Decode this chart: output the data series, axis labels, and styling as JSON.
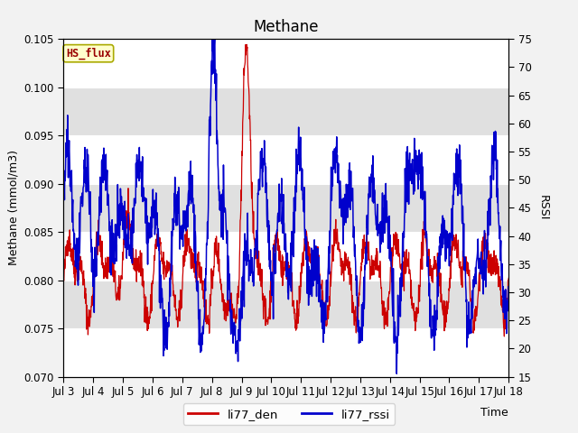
{
  "title": "Methane",
  "ylabel_left": "Methane (mmol/m3)",
  "ylabel_right": "RSSI",
  "xlabel": "Time",
  "ylim_left": [
    0.07,
    0.105
  ],
  "ylim_right": [
    15,
    75
  ],
  "yticks_left": [
    0.07,
    0.075,
    0.08,
    0.085,
    0.09,
    0.095,
    0.1,
    0.105
  ],
  "yticks_right": [
    15,
    20,
    25,
    30,
    35,
    40,
    45,
    50,
    55,
    60,
    65,
    70,
    75
  ],
  "xtick_labels": [
    "Jul 3",
    "Jul 4",
    "Jul 5",
    "Jul 6",
    "Jul 7",
    "Jul 8",
    "Jul 9",
    "Jul 10",
    "Jul 11",
    "Jul 12",
    "Jul 13",
    "Jul 14",
    "Jul 15",
    "Jul 16",
    "Jul 17",
    "Jul 18"
  ],
  "legend_labels": [
    "li77_den",
    "li77_rssi"
  ],
  "line_colors": [
    "#cc0000",
    "#0000cc"
  ],
  "annotation_text": "HS_flux",
  "annotation_bg": "#ffffcc",
  "annotation_border": "#aaaa00",
  "annotation_text_color": "#990000",
  "background_color": "#f2f2f2",
  "plot_bg_color": "#ffffff",
  "band_color": "#e0e0e0",
  "title_fontsize": 12,
  "label_fontsize": 9,
  "tick_fontsize": 8.5
}
